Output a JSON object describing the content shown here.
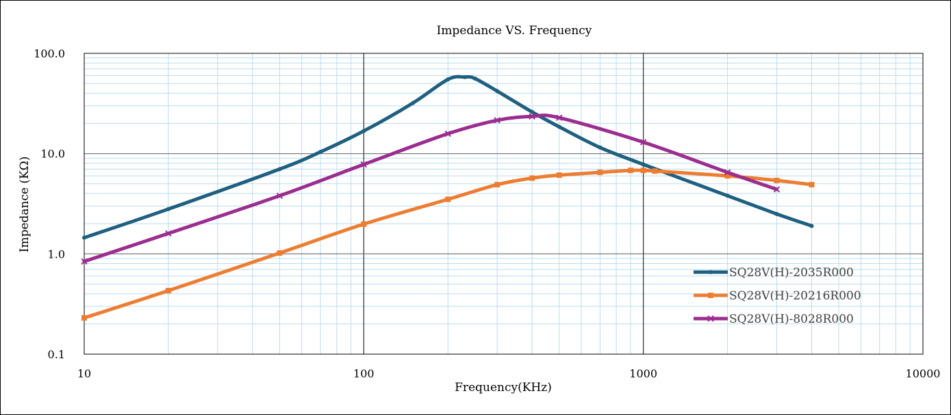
{
  "chart_data": {
    "type": "line",
    "title": "Impedance VS. Frequency",
    "xlabel": "Frequency(KHz)",
    "ylabel": "Impedance (KΩ)",
    "x_scale": "log",
    "y_scale": "log",
    "xlim": [
      10,
      10000
    ],
    "ylim": [
      0.1,
      100
    ],
    "x_ticks": [
      "10",
      "100",
      "1000",
      "10000"
    ],
    "y_ticks": [
      "0.1",
      "1.0",
      "10.0",
      "100.0"
    ],
    "grid": true,
    "legend_position": "bottom-right",
    "series": [
      {
        "name": "SQ28V(H)-2035R000",
        "color": "#1f5f80",
        "marker": "dot",
        "points": [
          [
            10,
            1.45
          ],
          [
            20,
            2.8
          ],
          [
            50,
            7.0
          ],
          [
            70,
            10.4
          ],
          [
            100,
            16.8
          ],
          [
            150,
            32
          ],
          [
            200,
            55
          ],
          [
            230,
            58
          ],
          [
            250,
            56
          ],
          [
            300,
            42
          ],
          [
            400,
            26
          ],
          [
            500,
            18.5
          ],
          [
            700,
            11.5
          ],
          [
            1000,
            7.8
          ],
          [
            2000,
            3.8
          ],
          [
            3000,
            2.5
          ],
          [
            4000,
            1.9
          ]
        ]
      },
      {
        "name": "SQ28V(H)-20216R000",
        "color": "#ed7d31",
        "marker": "square",
        "points": [
          [
            10,
            0.23
          ],
          [
            20,
            0.43
          ],
          [
            50,
            1.02
          ],
          [
            100,
            1.98
          ],
          [
            200,
            3.5
          ],
          [
            300,
            4.9
          ],
          [
            400,
            5.7
          ],
          [
            500,
            6.1
          ],
          [
            700,
            6.5
          ],
          [
            900,
            6.8
          ],
          [
            1000,
            6.8
          ],
          [
            1100,
            6.7
          ],
          [
            2000,
            6.0
          ],
          [
            3000,
            5.4
          ],
          [
            4000,
            4.9
          ]
        ]
      },
      {
        "name": "SQ28V(H)-8028R000",
        "color": "#9b2d8f",
        "marker": "cross",
        "points": [
          [
            10,
            0.84
          ],
          [
            20,
            1.6
          ],
          [
            50,
            3.8
          ],
          [
            100,
            7.8
          ],
          [
            200,
            15.8
          ],
          [
            300,
            21.5
          ],
          [
            400,
            23.5
          ],
          [
            500,
            22.8
          ],
          [
            1000,
            13
          ],
          [
            2000,
            6.5
          ],
          [
            3000,
            4.4
          ]
        ]
      }
    ]
  }
}
